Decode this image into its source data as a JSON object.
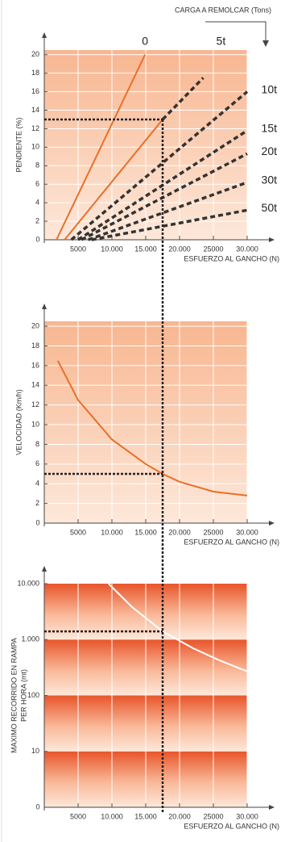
{
  "chart_data": [
    {
      "type": "line",
      "header": "CARGA A REMOLCAR (Tons)",
      "ylabel": [
        "PENDIENTE (%)"
      ],
      "xlabel": "ESFUERZO AL GANCHO (N)",
      "xlim": [
        0,
        30000
      ],
      "ylim": [
        0,
        20.5
      ],
      "xticks": [
        0,
        5000,
        {
          "value": 10000,
          "label": "10.000"
        },
        {
          "value": 15000,
          "label": "15.000"
        },
        {
          "value": 20000,
          "label": "20.000"
        },
        25000,
        {
          "value": 30000,
          "label": "30.000"
        }
      ],
      "yticks": [
        2,
        4,
        6,
        8,
        10,
        12,
        14,
        16,
        18,
        20
      ],
      "guide": {
        "x": 17500,
        "y": 13
      },
      "series": [
        {
          "name": "0",
          "color": "#e8702a",
          "x": [
            1800,
            14900
          ],
          "values": [
            0,
            20
          ]
        },
        {
          "name": "5t",
          "color": "#e8702a",
          "x": [
            3000,
            17500,
            23500
          ],
          "values": [
            0,
            13,
            17.5
          ]
        },
        {
          "name": "10t",
          "color": "#e8702a",
          "x": [
            4000,
            30000
          ],
          "values": [
            0,
            16
          ]
        },
        {
          "name": "15t",
          "color": "#e8702a",
          "x": [
            5000,
            30000
          ],
          "values": [
            0,
            11.8
          ]
        },
        {
          "name": "20t",
          "color": "#e8702a",
          "x": [
            5500,
            30000
          ],
          "values": [
            0,
            9.3
          ]
        },
        {
          "name": "30t",
          "color": "#e8702a",
          "x": [
            6500,
            30000
          ],
          "values": [
            0,
            6.2
          ]
        },
        {
          "name": "50t",
          "color": "#e8702a",
          "x": [
            7000,
            30000
          ],
          "values": [
            0,
            3.2
          ]
        }
      ]
    },
    {
      "type": "line",
      "ylabel": [
        "VELOCIDAD (Km/h)"
      ],
      "xlabel": "ESFUERZO AL GANCHO (N)",
      "xlim": [
        0,
        30000
      ],
      "ylim": [
        0,
        20.5
      ],
      "xticks": [
        0,
        5000,
        {
          "value": 10000,
          "label": "10.000"
        },
        {
          "value": 15000,
          "label": "15.000"
        },
        {
          "value": 20000,
          "label": "20.000"
        },
        25000,
        {
          "value": 30000,
          "label": "30.000"
        }
      ],
      "yticks": [
        2,
        4,
        6,
        8,
        10,
        12,
        14,
        16,
        18,
        20
      ],
      "guide": {
        "y": 5
      },
      "series": [
        {
          "color": "#e8702a",
          "x": [
            2000,
            5000,
            10000,
            15000,
            17500,
            20000,
            25000,
            30000
          ],
          "values": [
            16.5,
            12.5,
            8.5,
            6,
            5,
            4.2,
            3.2,
            2.8
          ]
        }
      ]
    },
    {
      "type": "line",
      "log_y": true,
      "ylabel": [
        "MAXIMO RECORRIDO EN RAMPA",
        "PER HORA (mt)"
      ],
      "xlabel": "ESFUERZO AL GANCHO (N)",
      "xlim": [
        0,
        30000
      ],
      "ylim": [
        1,
        10000
      ],
      "xticks": [
        0,
        5000,
        {
          "value": 10000,
          "label": "10.000"
        },
        {
          "value": 15000,
          "label": "15.000"
        },
        {
          "value": 20000,
          "label": "20.000"
        },
        25000,
        {
          "value": 30000,
          "label": "30.000"
        }
      ],
      "yticks": [
        {
          "value": 10000,
          "label": "10.000"
        },
        {
          "value": 1000,
          "label": "1.000"
        },
        100,
        10
      ],
      "guide": {
        "y": 1400
      },
      "series": [
        {
          "color": "#ffffff",
          "x": [
            9500,
            13000,
            17500,
            22000,
            26000,
            30000
          ],
          "values": [
            10000,
            3800,
            1400,
            700,
            420,
            270
          ]
        }
      ]
    }
  ]
}
